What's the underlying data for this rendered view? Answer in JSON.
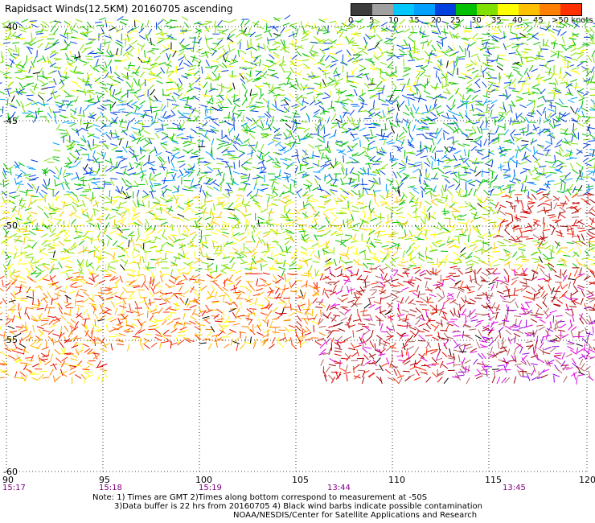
{
  "title": "Rapidsact Winds(12.5KM) 20160705 ascending",
  "legend": {
    "unit": "knots",
    "labels": [
      "0",
      "5",
      "10",
      "15",
      "20",
      "25",
      "30",
      "35",
      "40",
      "45",
      ">50 knots"
    ],
    "colors": [
      "#3c3c3c",
      "#a0a0a0",
      "#00c8ff",
      "#00a0ff",
      "#0040e0",
      "#00c000",
      "#80e000",
      "#ffff00",
      "#ffc000",
      "#ff8000",
      "#ff3000",
      "#e00000",
      "#a00000",
      "#b06060",
      "#e000e0",
      "#9000e0"
    ]
  },
  "axes": {
    "lat_labels": [
      "-40",
      "-45",
      "-50",
      "-55",
      "-60"
    ],
    "lon_labels": [
      "90",
      "95",
      "100",
      "105",
      "110",
      "115",
      "120"
    ],
    "time_labels": [
      "15:17",
      "15:18",
      "15:19",
      "13:44",
      "13:45"
    ]
  },
  "notes": {
    "line1": "Note: 1) Times are GMT 2)Times along bottom correspond to measurement at -50S",
    "line2": "3)Data buffer is 22 hrs from 20160705 4) Black wind barbs indicate possible contamination",
    "line3": "NOAA/NESDIS/Center for Satellite Applications and Research"
  },
  "colors": {
    "grid": "#000000",
    "time_label": "#800080",
    "barb_calm": "#0040e0",
    "barb_strong": "#e000e0"
  }
}
